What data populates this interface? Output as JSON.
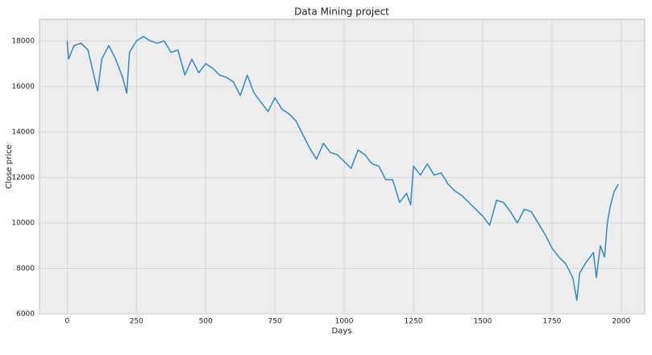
{
  "chart_data": {
    "type": "line",
    "title": "Data Mining project",
    "xlabel": "Days",
    "ylabel": "Close price",
    "x": [
      0,
      5,
      25,
      50,
      75,
      100,
      110,
      125,
      150,
      175,
      200,
      215,
      225,
      250,
      275,
      300,
      325,
      350,
      375,
      400,
      425,
      450,
      475,
      500,
      525,
      550,
      575,
      600,
      625,
      650,
      675,
      700,
      725,
      750,
      775,
      800,
      825,
      850,
      875,
      900,
      925,
      950,
      975,
      1000,
      1025,
      1050,
      1075,
      1100,
      1125,
      1150,
      1175,
      1200,
      1225,
      1240,
      1250,
      1275,
      1300,
      1325,
      1350,
      1375,
      1400,
      1425,
      1450,
      1475,
      1500,
      1525,
      1550,
      1575,
      1600,
      1625,
      1650,
      1675,
      1700,
      1725,
      1750,
      1775,
      1800,
      1825,
      1840,
      1850,
      1875,
      1900,
      1910,
      1925,
      1940,
      1950,
      1960,
      1975,
      1990
    ],
    "series": [
      {
        "color": "#348abd",
        "values": [
          18000,
          17200,
          17800,
          17900,
          17600,
          16300,
          15800,
          17200,
          17800,
          17200,
          16400,
          15700,
          17500,
          18000,
          18200,
          18000,
          17900,
          18000,
          17500,
          17600,
          16500,
          17200,
          16600,
          17000,
          16800,
          16500,
          16400,
          16200,
          15600,
          16500,
          15700,
          15300,
          14900,
          15500,
          15000,
          14800,
          14500,
          13900,
          13300,
          12800,
          13500,
          13100,
          13000,
          12700,
          12400,
          13200,
          13000,
          12600,
          12500,
          11900,
          11900,
          10900,
          11300,
          10800,
          12500,
          12100,
          12600,
          12100,
          12200,
          11700,
          11400,
          11200,
          10900,
          10600,
          10300,
          9900,
          11000,
          10900,
          10500,
          10000,
          10600,
          10500,
          10000,
          9500,
          8900,
          8500,
          8200,
          7600,
          6600,
          7800,
          8300,
          8700,
          7600,
          9000,
          8500,
          10000,
          10700,
          11400,
          11700
        ]
      }
    ],
    "xlim": [
      -100,
      2085
    ],
    "ylim": [
      6000,
      18950
    ],
    "xticks": [
      0,
      250,
      500,
      750,
      1000,
      1250,
      1500,
      1750,
      2000
    ],
    "yticks": [
      6000,
      8000,
      10000,
      12000,
      14000,
      16000,
      18000
    ],
    "grid": true
  }
}
